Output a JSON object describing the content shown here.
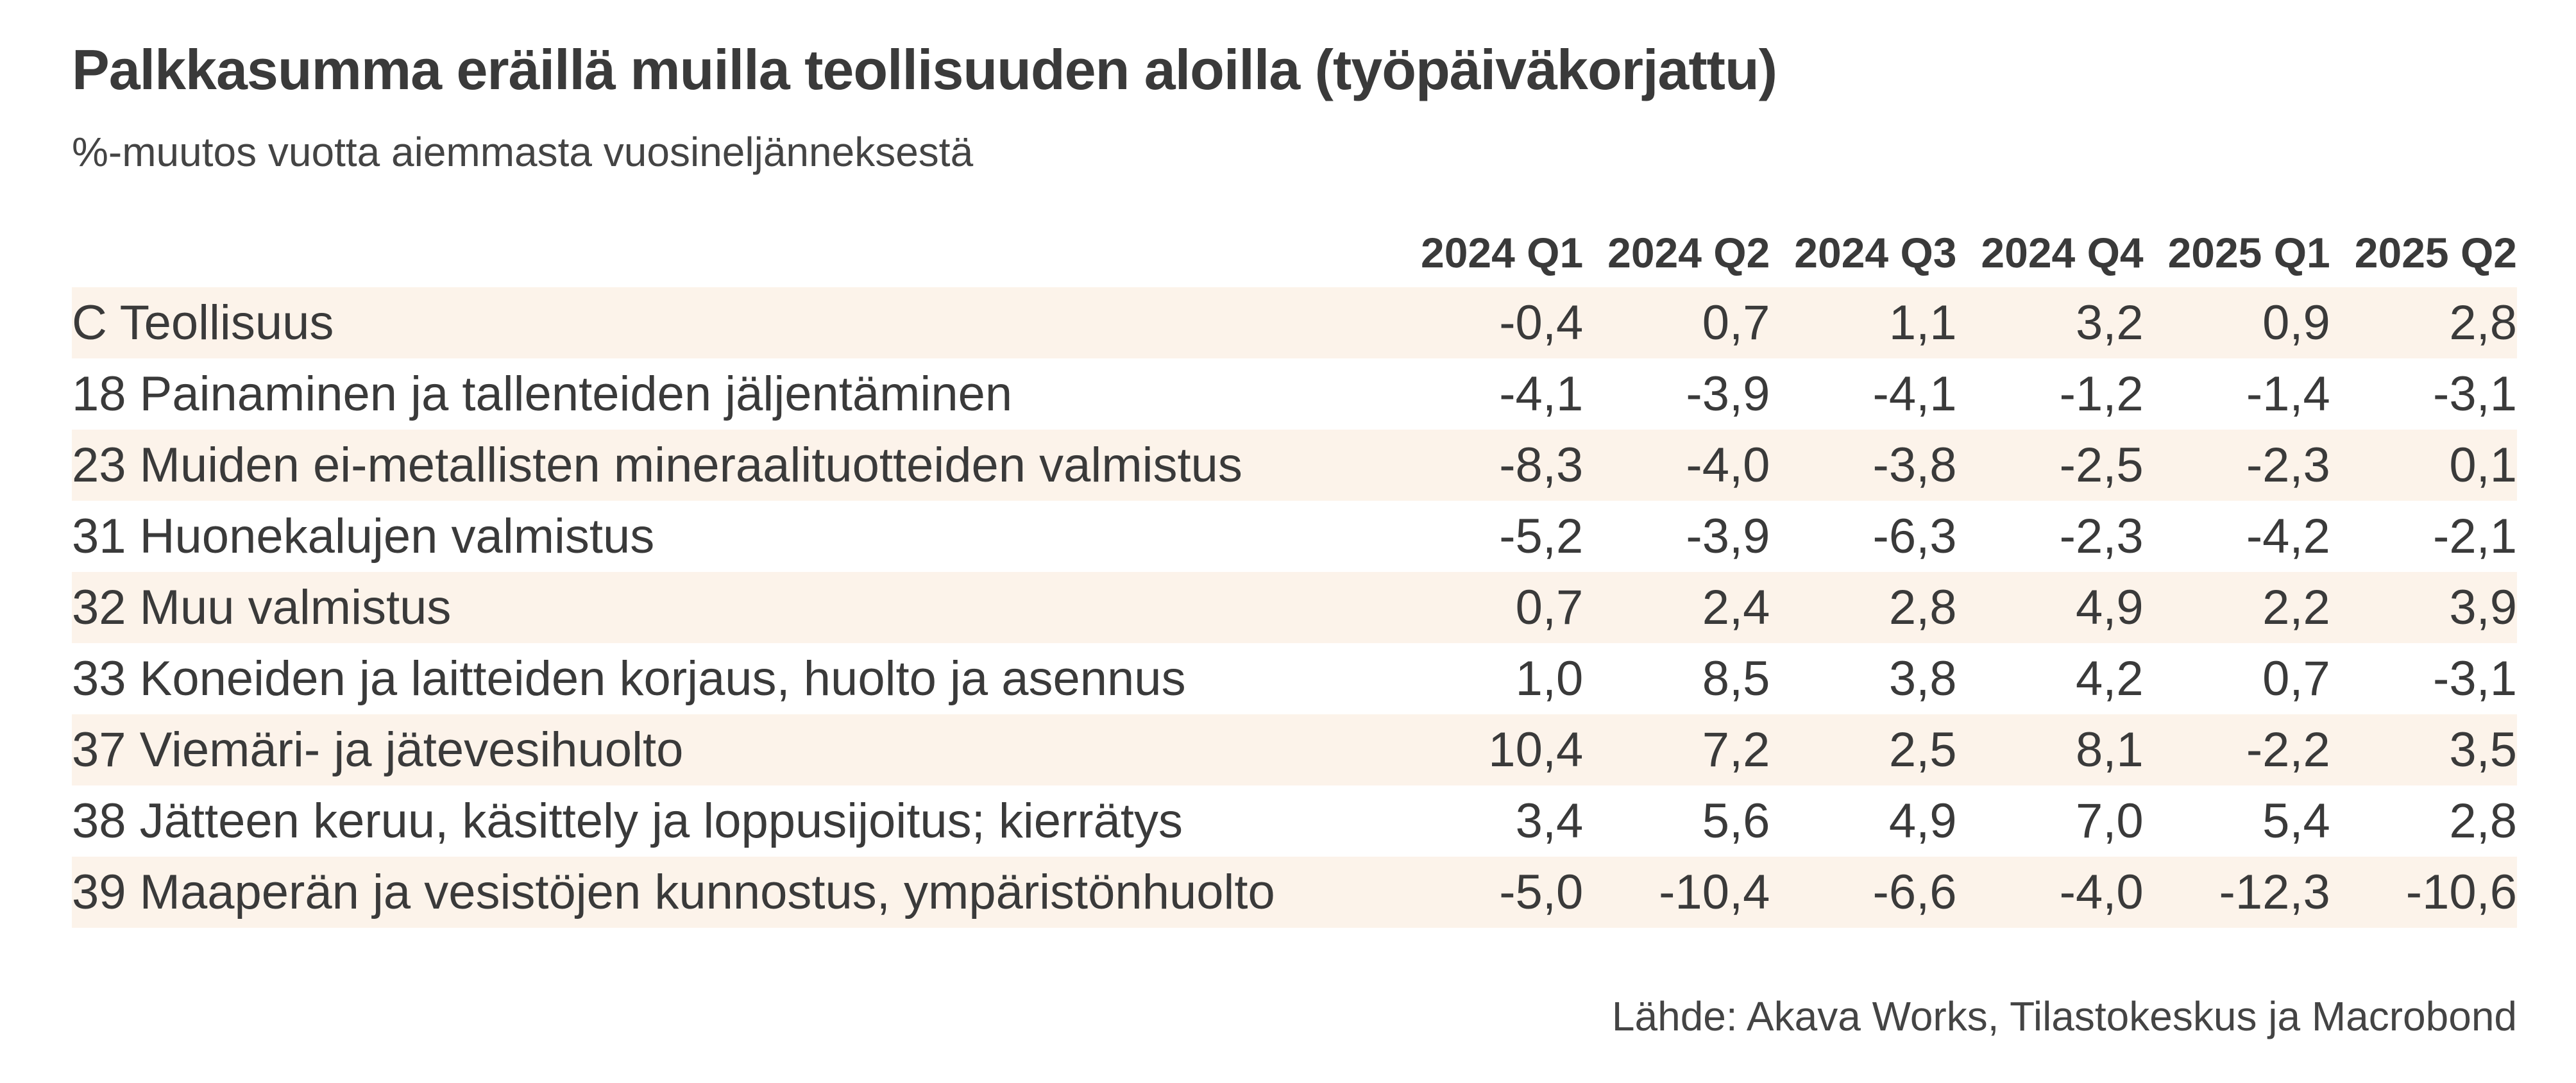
{
  "title": "Palkkasumma eräillä muilla teollisuuden aloilla (työpäiväkorjattu)",
  "subtitle": "%-muutos vuotta aiemmasta vuosineljänneksestä",
  "source": "Lähde: Akava Works, Tilastokeskus ja Macrobond",
  "colors": {
    "row_shade": "#fcf3ea",
    "text": "#3a3a3a"
  },
  "chart_data": {
    "type": "table",
    "columns": [
      "2024 Q1",
      "2024 Q2",
      "2024 Q3",
      "2024 Q4",
      "2025 Q1",
      "2025 Q2"
    ],
    "rows": [
      {
        "label": "C Teollisuus",
        "values": [
          "-0,4",
          "0,7",
          "1,1",
          "3,2",
          "0,9",
          "2,8"
        ]
      },
      {
        "label": "18 Painaminen ja tallenteiden jäljentäminen",
        "values": [
          "-4,1",
          "-3,9",
          "-4,1",
          "-1,2",
          "-1,4",
          "-3,1"
        ]
      },
      {
        "label": "23 Muiden ei-metallisten mineraalituotteiden valmistus",
        "values": [
          "-8,3",
          "-4,0",
          "-3,8",
          "-2,5",
          "-2,3",
          "0,1"
        ]
      },
      {
        "label": "31 Huonekalujen valmistus",
        "values": [
          "-5,2",
          "-3,9",
          "-6,3",
          "-2,3",
          "-4,2",
          "-2,1"
        ]
      },
      {
        "label": "32 Muu valmistus",
        "values": [
          "0,7",
          "2,4",
          "2,8",
          "4,9",
          "2,2",
          "3,9"
        ]
      },
      {
        "label": "33 Koneiden ja laitteiden korjaus, huolto ja asennus",
        "values": [
          "1,0",
          "8,5",
          "3,8",
          "4,2",
          "0,7",
          "-3,1"
        ]
      },
      {
        "label": "37 Viemäri- ja jätevesihuolto",
        "values": [
          "10,4",
          "7,2",
          "2,5",
          "8,1",
          "-2,2",
          "3,5"
        ]
      },
      {
        "label": "38 Jätteen keruu, käsittely ja loppusijoitus; kierrätys",
        "values": [
          "3,4",
          "5,6",
          "4,9",
          "7,0",
          "5,4",
          "2,8"
        ]
      },
      {
        "label": "39 Maaperän ja vesistöjen kunnostus, ympäristönhuolto",
        "values": [
          "-5,0",
          "-10,4",
          "-6,6",
          "-4,0",
          "-12,3",
          "-10,6"
        ]
      }
    ]
  }
}
